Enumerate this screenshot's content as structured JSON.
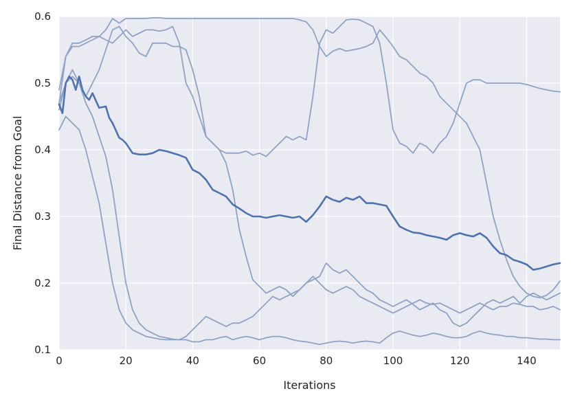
{
  "chart_data": {
    "type": "line",
    "title": "",
    "xlabel": "Iterations",
    "ylabel": "Final Distance from Goal",
    "xlim": [
      0,
      150
    ],
    "ylim": [
      0.1,
      0.6
    ],
    "xticks": [
      0,
      20,
      40,
      60,
      80,
      100,
      120,
      140
    ],
    "xtick_labels": [
      "0",
      "20",
      "40",
      "60",
      "80",
      "100",
      "120",
      "140"
    ],
    "yticks": [
      0.1,
      0.2,
      0.3,
      0.4,
      0.5,
      0.6
    ],
    "ytick_labels": [
      "0.1",
      "0.2",
      "0.3",
      "0.4",
      "0.5",
      "0.6"
    ],
    "grid": true,
    "legend": "none",
    "colors": {
      "background": "#eaeaf2",
      "grid": "#ffffff",
      "mean_line": "#4c72b0",
      "run_line": "#8ea2c5"
    },
    "mean": {
      "x": [
        0,
        1,
        2,
        3,
        4,
        5,
        6,
        7,
        8,
        9,
        10,
        12,
        14,
        15,
        16,
        18,
        19,
        20,
        22,
        24,
        26,
        28,
        30,
        32,
        34,
        36,
        38,
        40,
        42,
        44,
        46,
        48,
        50,
        52,
        54,
        56,
        58,
        60,
        62,
        64,
        66,
        68,
        70,
        72,
        74,
        76,
        78,
        80,
        82,
        84,
        86,
        88,
        90,
        92,
        94,
        96,
        98,
        100,
        102,
        104,
        106,
        108,
        110,
        112,
        114,
        116,
        118,
        120,
        122,
        124,
        126,
        128,
        130,
        132,
        134,
        136,
        138,
        140,
        142,
        144,
        146,
        148,
        150
      ],
      "y": [
        0.468,
        0.455,
        0.5,
        0.51,
        0.505,
        0.49,
        0.51,
        0.49,
        0.48,
        0.475,
        0.485,
        0.463,
        0.465,
        0.448,
        0.44,
        0.418,
        0.415,
        0.41,
        0.395,
        0.393,
        0.393,
        0.395,
        0.4,
        0.398,
        0.395,
        0.392,
        0.388,
        0.37,
        0.365,
        0.355,
        0.34,
        0.335,
        0.33,
        0.318,
        0.312,
        0.305,
        0.3,
        0.3,
        0.298,
        0.3,
        0.302,
        0.3,
        0.298,
        0.3,
        0.292,
        0.302,
        0.315,
        0.33,
        0.325,
        0.322,
        0.328,
        0.325,
        0.33,
        0.32,
        0.32,
        0.318,
        0.316,
        0.3,
        0.285,
        0.28,
        0.276,
        0.275,
        0.272,
        0.27,
        0.268,
        0.265,
        0.272,
        0.275,
        0.272,
        0.27,
        0.275,
        0.268,
        0.255,
        0.245,
        0.242,
        0.235,
        0.232,
        0.228,
        0.22,
        0.222,
        0.225,
        0.228,
        0.23
      ]
    },
    "runs": [
      {
        "x": [
          0,
          2,
          4,
          6,
          8,
          10,
          12,
          14,
          16,
          18,
          20,
          22,
          24,
          26,
          28,
          30,
          32,
          34,
          36,
          38,
          40,
          42,
          44,
          46,
          48,
          50,
          52,
          54,
          56,
          58,
          60,
          62,
          64,
          66,
          68,
          70,
          72,
          74,
          76,
          78,
          80,
          82,
          84,
          86,
          88,
          90,
          92,
          94,
          96,
          98,
          100,
          102,
          104,
          106,
          108,
          110,
          112,
          114,
          116,
          118,
          120,
          122,
          124,
          126,
          128,
          130,
          132,
          134,
          136,
          138,
          140,
          142,
          144,
          146,
          148,
          150
        ],
        "y": [
          0.49,
          0.54,
          0.56,
          0.56,
          0.565,
          0.57,
          0.57,
          0.58,
          0.597,
          0.59,
          0.597,
          0.597,
          0.597,
          0.597,
          0.598,
          0.598,
          0.597,
          0.597,
          0.597,
          0.597,
          0.597,
          0.597,
          0.597,
          0.597,
          0.597,
          0.597,
          0.597,
          0.597,
          0.597,
          0.597,
          0.597,
          0.597,
          0.597,
          0.597,
          0.597,
          0.597,
          0.595,
          0.592,
          0.58,
          0.555,
          0.54,
          0.548,
          0.552,
          0.548,
          0.55,
          0.552,
          0.555,
          0.56,
          0.58,
          0.568,
          0.555,
          0.54,
          0.535,
          0.525,
          0.515,
          0.51,
          0.5,
          0.48,
          0.47,
          0.46,
          0.45,
          0.44,
          0.42,
          0.4,
          0.35,
          0.3,
          0.265,
          0.235,
          0.21,
          0.195,
          0.185,
          0.18,
          0.178,
          0.182,
          0.19,
          0.203
        ]
      },
      {
        "x": [
          0,
          2,
          4,
          6,
          8,
          10,
          12,
          14,
          16,
          18,
          20,
          22,
          24,
          26,
          28,
          30,
          32,
          34,
          36,
          38,
          40,
          42,
          44,
          46,
          48,
          50,
          52,
          54,
          56,
          58,
          60,
          62,
          64,
          66,
          68,
          70,
          72,
          74,
          76,
          78,
          80,
          82,
          84,
          86,
          88,
          90,
          92,
          94,
          96,
          98,
          100,
          102,
          104,
          106,
          108,
          110,
          112,
          114,
          116,
          118,
          120,
          122,
          124,
          126,
          128,
          130,
          132,
          134,
          136,
          138,
          140,
          142,
          144,
          146,
          148,
          150
        ],
        "y": [
          0.47,
          0.54,
          0.555,
          0.555,
          0.56,
          0.565,
          0.57,
          0.565,
          0.56,
          0.57,
          0.58,
          0.57,
          0.575,
          0.58,
          0.58,
          0.578,
          0.58,
          0.585,
          0.56,
          0.5,
          0.48,
          0.45,
          0.42,
          0.41,
          0.4,
          0.395,
          0.395,
          0.395,
          0.398,
          0.392,
          0.395,
          0.39,
          0.4,
          0.41,
          0.42,
          0.415,
          0.42,
          0.415,
          0.48,
          0.56,
          0.58,
          0.575,
          0.585,
          0.595,
          0.596,
          0.595,
          0.59,
          0.585,
          0.56,
          0.5,
          0.43,
          0.41,
          0.405,
          0.395,
          0.41,
          0.405,
          0.395,
          0.41,
          0.42,
          0.44,
          0.47,
          0.5,
          0.505,
          0.505,
          0.5,
          0.5,
          0.5,
          0.5,
          0.5,
          0.5,
          0.498,
          0.495,
          0.492,
          0.49,
          0.488,
          0.487
        ]
      },
      {
        "x": [
          0,
          2,
          4,
          6,
          8,
          10,
          12,
          14,
          16,
          18,
          20,
          22,
          24,
          26,
          28,
          30,
          32,
          34,
          36,
          38,
          40,
          42,
          44,
          46,
          48,
          50,
          52,
          54,
          56,
          58,
          60,
          62,
          64,
          66,
          68,
          70,
          72,
          74,
          76,
          78,
          80,
          82,
          84,
          86,
          88,
          90,
          92,
          94,
          96,
          98,
          100,
          102,
          104,
          106,
          108,
          110,
          112,
          114,
          116,
          118,
          120,
          122,
          124,
          126,
          128,
          130,
          132,
          134,
          136,
          138,
          140,
          142,
          144,
          146,
          148,
          150
        ],
        "y": [
          0.46,
          0.5,
          0.52,
          0.5,
          0.48,
          0.5,
          0.52,
          0.55,
          0.58,
          0.585,
          0.57,
          0.56,
          0.545,
          0.54,
          0.56,
          0.56,
          0.56,
          0.555,
          0.555,
          0.55,
          0.52,
          0.48,
          0.42,
          0.41,
          0.4,
          0.38,
          0.34,
          0.28,
          0.24,
          0.205,
          0.195,
          0.185,
          0.19,
          0.195,
          0.19,
          0.18,
          0.19,
          0.2,
          0.205,
          0.21,
          0.23,
          0.22,
          0.215,
          0.22,
          0.21,
          0.2,
          0.19,
          0.185,
          0.175,
          0.17,
          0.165,
          0.17,
          0.175,
          0.168,
          0.16,
          0.165,
          0.17,
          0.16,
          0.155,
          0.14,
          0.135,
          0.14,
          0.15,
          0.16,
          0.17,
          0.175,
          0.17,
          0.175,
          0.18,
          0.17,
          0.18,
          0.185,
          0.18,
          0.175,
          0.18,
          0.185
        ]
      },
      {
        "x": [
          0,
          2,
          4,
          6,
          8,
          10,
          12,
          14,
          16,
          18,
          20,
          22,
          24,
          26,
          28,
          30,
          32,
          34,
          36,
          38,
          40,
          42,
          44,
          46,
          48,
          50,
          52,
          54,
          56,
          58,
          60,
          62,
          64,
          66,
          68,
          70,
          72,
          74,
          76,
          78,
          80,
          82,
          84,
          86,
          88,
          90,
          92,
          94,
          96,
          98,
          100,
          102,
          104,
          106,
          108,
          110,
          112,
          114,
          116,
          118,
          120,
          122,
          124,
          126,
          128,
          130,
          132,
          134,
          136,
          138,
          140,
          142,
          144,
          146,
          148,
          150
        ],
        "y": [
          0.47,
          0.5,
          0.51,
          0.5,
          0.47,
          0.45,
          0.42,
          0.39,
          0.34,
          0.27,
          0.2,
          0.16,
          0.14,
          0.13,
          0.125,
          0.12,
          0.118,
          0.116,
          0.115,
          0.12,
          0.13,
          0.14,
          0.15,
          0.145,
          0.14,
          0.135,
          0.14,
          0.14,
          0.145,
          0.15,
          0.16,
          0.17,
          0.18,
          0.175,
          0.18,
          0.185,
          0.19,
          0.2,
          0.21,
          0.2,
          0.19,
          0.185,
          0.19,
          0.195,
          0.19,
          0.18,
          0.175,
          0.17,
          0.165,
          0.16,
          0.155,
          0.16,
          0.165,
          0.17,
          0.175,
          0.17,
          0.168,
          0.17,
          0.165,
          0.16,
          0.155,
          0.16,
          0.165,
          0.17,
          0.165,
          0.16,
          0.165,
          0.165,
          0.17,
          0.168,
          0.165,
          0.165,
          0.16,
          0.162,
          0.165,
          0.16
        ]
      },
      {
        "x": [
          0,
          2,
          4,
          6,
          8,
          10,
          12,
          14,
          16,
          18,
          20,
          22,
          24,
          26,
          28,
          30,
          32,
          34,
          36,
          38,
          40,
          42,
          44,
          46,
          48,
          50,
          52,
          54,
          56,
          58,
          60,
          62,
          64,
          66,
          68,
          70,
          72,
          74,
          76,
          78,
          80,
          82,
          84,
          86,
          88,
          90,
          92,
          94,
          96,
          98,
          100,
          102,
          104,
          106,
          108,
          110,
          112,
          114,
          116,
          118,
          120,
          122,
          124,
          126,
          128,
          130,
          132,
          134,
          136,
          138,
          140,
          142,
          144,
          146,
          148,
          150
        ],
        "y": [
          0.43,
          0.45,
          0.44,
          0.43,
          0.4,
          0.36,
          0.32,
          0.26,
          0.2,
          0.16,
          0.14,
          0.13,
          0.125,
          0.12,
          0.118,
          0.116,
          0.115,
          0.115,
          0.115,
          0.115,
          0.112,
          0.112,
          0.115,
          0.115,
          0.118,
          0.12,
          0.115,
          0.118,
          0.12,
          0.118,
          0.115,
          0.118,
          0.12,
          0.12,
          0.118,
          0.115,
          0.113,
          0.112,
          0.11,
          0.108,
          0.11,
          0.112,
          0.113,
          0.112,
          0.11,
          0.112,
          0.113,
          0.112,
          0.11,
          0.118,
          0.125,
          0.128,
          0.125,
          0.122,
          0.12,
          0.122,
          0.125,
          0.123,
          0.12,
          0.118,
          0.118,
          0.12,
          0.125,
          0.128,
          0.125,
          0.123,
          0.122,
          0.12,
          0.12,
          0.118,
          0.118,
          0.117,
          0.116,
          0.116,
          0.115,
          0.115
        ]
      }
    ]
  }
}
